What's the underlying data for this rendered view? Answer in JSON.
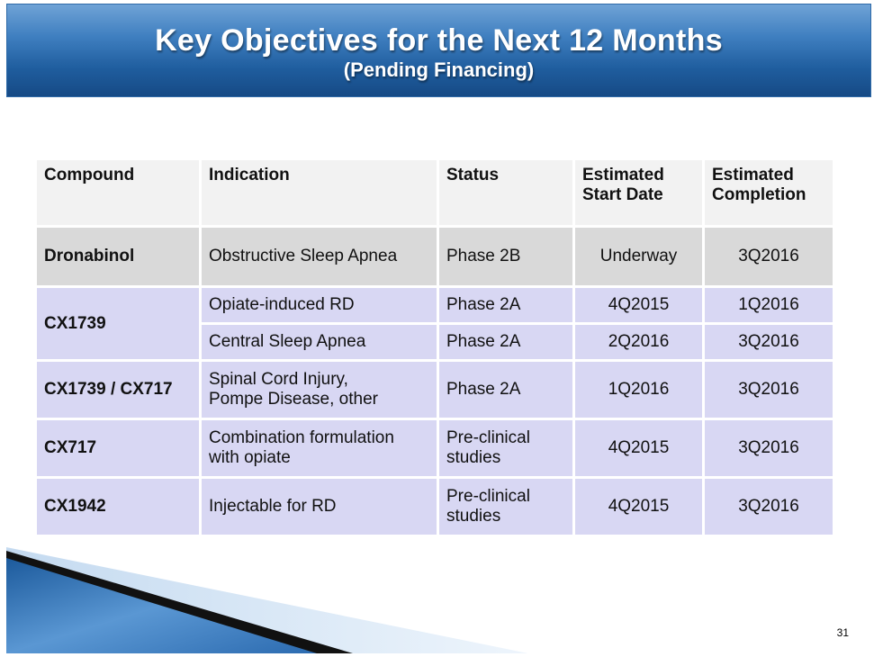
{
  "slide": {
    "title": "Key Objectives for the Next 12 Months",
    "subtitle": "(Pending Financing)",
    "page_number": "31"
  },
  "table": {
    "headers": {
      "compound": "Compound",
      "indication": "Indication",
      "status": "Status",
      "start_line1": "Estimated",
      "start_line2": "Start Date",
      "completion_line1": "Estimated",
      "completion_line2": "Completion"
    },
    "rows": [
      {
        "compound": "Dronabinol",
        "indication": "Obstructive Sleep Apnea",
        "status": "Phase 2B",
        "start": "Underway",
        "completion": "3Q2016"
      },
      {
        "compound": "CX1739",
        "indication": "Opiate-induced RD",
        "status": "Phase 2A",
        "start": "4Q2015",
        "completion": "1Q2016"
      },
      {
        "indication": "Central Sleep Apnea",
        "status": "Phase 2A",
        "start": "2Q2016",
        "completion": "3Q2016"
      },
      {
        "compound": "CX1739 / CX717",
        "indication_line1": "Spinal Cord Injury,",
        "indication_line2": "Pompe Disease, other",
        "status": "Phase 2A",
        "start": "1Q2016",
        "completion": "3Q2016"
      },
      {
        "compound": "CX717",
        "indication_line1": "Combination formulation",
        "indication_line2": "with opiate",
        "status_line1": "Pre-clinical",
        "status_line2": "studies",
        "start": "4Q2015",
        "completion": "3Q2016"
      },
      {
        "compound": "CX1942",
        "indication": "Injectable for RD",
        "status_line1": "Pre-clinical",
        "status_line2": "studies",
        "start": "4Q2015",
        "completion": "3Q2016"
      }
    ]
  }
}
